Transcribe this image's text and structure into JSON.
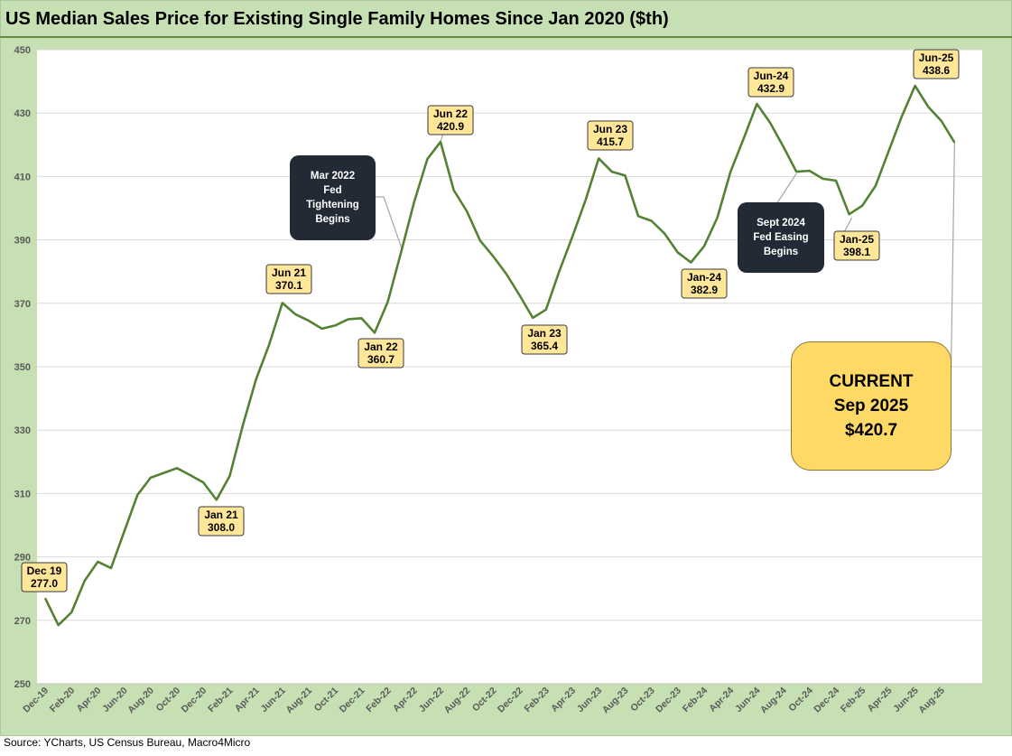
{
  "chart_data": {
    "type": "line",
    "title": "US Median Sales Price for Existing Single Family Homes Since Jan 2020 ($th)",
    "xlabel": "",
    "ylabel": "",
    "ylim": [
      250,
      450
    ],
    "yticks": [
      250,
      270,
      290,
      310,
      330,
      350,
      370,
      390,
      410,
      430,
      450
    ],
    "line_color": "#548235",
    "tick_labels": [
      "Dec-19",
      "Feb-20",
      "Apr-20",
      "Jun-20",
      "Aug-20",
      "Oct-20",
      "Dec-20",
      "Feb-21",
      "Apr-21",
      "Jun-21",
      "Aug-21",
      "Oct-21",
      "Dec-21",
      "Feb-22",
      "Apr-22",
      "Jun-22",
      "Aug-22",
      "Oct-22",
      "Dec-22",
      "Feb-23",
      "Apr-23",
      "Jun-23",
      "Aug-23",
      "Oct-23",
      "Dec-23",
      "Feb-24",
      "Apr-24",
      "Jun-24",
      "Aug-24",
      "Oct-24",
      "Dec-24",
      "Feb-25",
      "Apr-25",
      "Jun-25",
      "Aug-25"
    ],
    "series": [
      {
        "name": "Median Sales Price ($th)",
        "values": [
          277.0,
          268.5,
          272.5,
          282.5,
          288.5,
          286.5,
          298,
          309.5,
          315,
          316.5,
          318,
          315.8,
          313.5,
          308.0,
          315.5,
          331.5,
          346,
          357,
          370.1,
          366.5,
          364.5,
          362,
          363,
          365,
          365.3,
          360.7,
          370.5,
          386,
          402,
          415.5,
          420.9,
          405.7,
          399,
          389.8,
          384.8,
          379.2,
          372.5,
          365.4,
          368,
          380,
          391,
          402.5,
          415.7,
          411.5,
          410.3,
          397.5,
          396,
          392,
          386,
          382.9,
          388,
          397,
          411.5,
          422,
          432.9,
          427,
          419.5,
          411.5,
          411.8,
          409.3,
          408.7,
          398.1,
          400.8,
          407,
          418,
          429,
          438.6,
          432,
          427.5,
          420.7
        ]
      }
    ],
    "annotations": [
      {
        "index": 0,
        "label": "Dec 19",
        "value": "277.0"
      },
      {
        "index": 13,
        "label": "Jan 21",
        "value": "308.0"
      },
      {
        "index": 18,
        "label": "Jun 21",
        "value": "370.1"
      },
      {
        "index": 25,
        "label": "Jan 22",
        "value": "360.7"
      },
      {
        "index": 30,
        "label": "Jun 22",
        "value": "420.9"
      },
      {
        "index": 37,
        "label": "Jan 23",
        "value": "365.4"
      },
      {
        "index": 42,
        "label": "Jun 23",
        "value": "415.7"
      },
      {
        "index": 49,
        "label": "Jan-24",
        "value": "382.9"
      },
      {
        "index": 54,
        "label": "Jun-24",
        "value": "432.9"
      },
      {
        "index": 61,
        "label": "Jan-25",
        "value": "398.1"
      },
      {
        "index": 66,
        "label": "Jun-25",
        "value": "438.6"
      }
    ],
    "notes": [
      {
        "id": "fed-tightening",
        "lines": [
          "Mar 2022",
          "Fed",
          "Tightening",
          "Begins"
        ],
        "index": 27
      },
      {
        "id": "fed-easing",
        "lines": [
          "Sept 2024",
          "Fed Easing",
          "Begins"
        ],
        "index": 57
      }
    ],
    "current": {
      "lines": [
        "CURRENT",
        "Sep 2025",
        "$420.7"
      ],
      "index": 69
    }
  },
  "colors": {
    "frame": "#c6e0b4",
    "line": "#548235",
    "callout_fill": "#ffe699",
    "note_fill": "#222a35",
    "current_fill": "#ffd966"
  },
  "source": "Source: YCharts, US Census Bureau, Macro4Micro"
}
